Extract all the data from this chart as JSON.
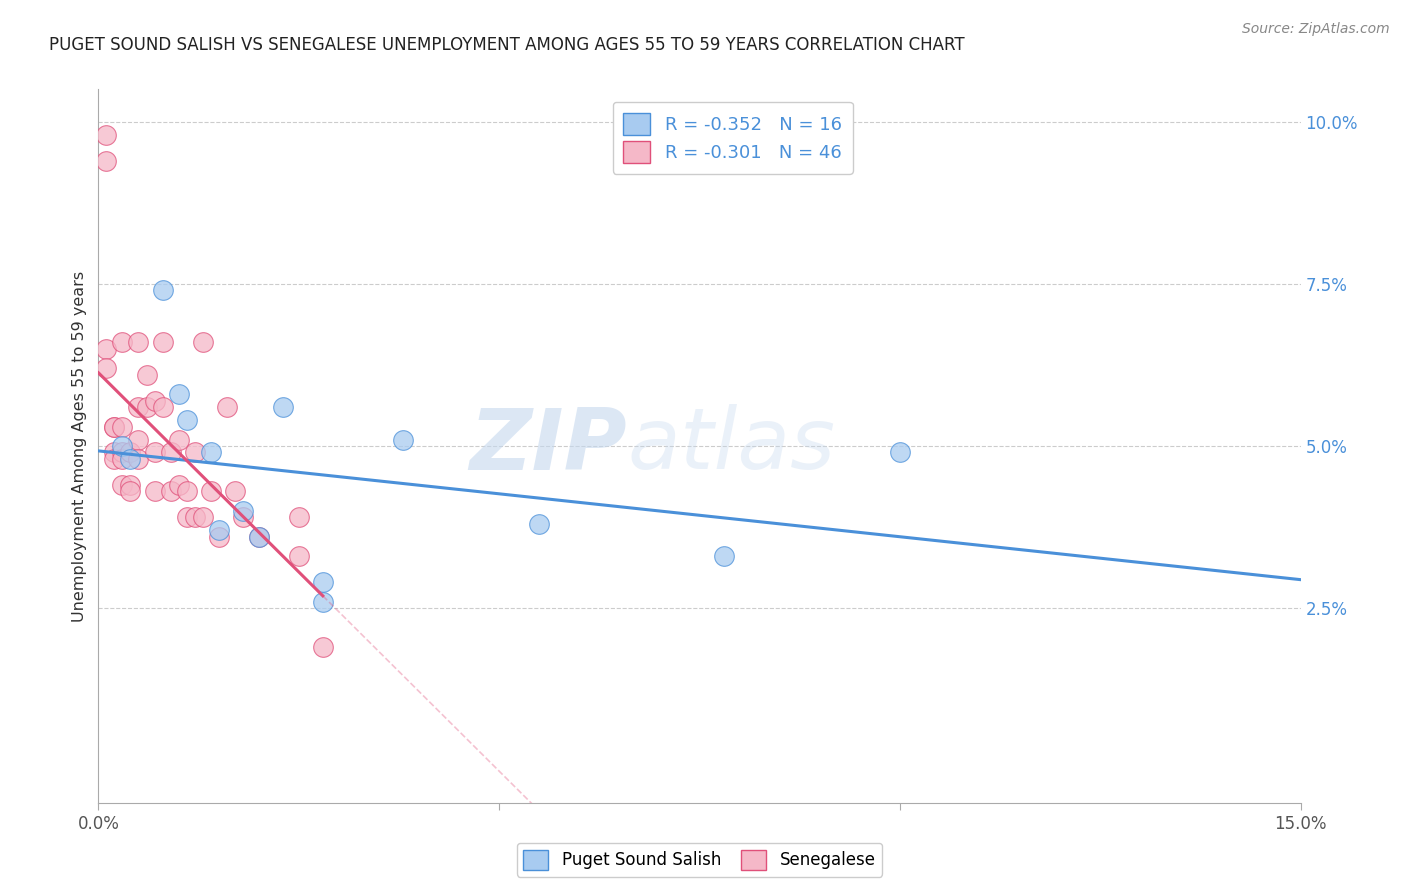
{
  "title": "PUGET SOUND SALISH VS SENEGALESE UNEMPLOYMENT AMONG AGES 55 TO 59 YEARS CORRELATION CHART",
  "source": "Source: ZipAtlas.com",
  "ylabel": "Unemployment Among Ages 55 to 59 years",
  "xlim": [
    0.0,
    0.15
  ],
  "ylim": [
    -0.005,
    0.105
  ],
  "yticks_right": [
    0.025,
    0.05,
    0.075,
    0.1
  ],
  "yticklabels_right": [
    "2.5%",
    "5.0%",
    "7.5%",
    "10.0%"
  ],
  "blue_color": "#A8CBF0",
  "pink_color": "#F5B8C8",
  "blue_line_color": "#4A90D9",
  "pink_line_color": "#E0507A",
  "blue_r": "-0.352",
  "blue_n": "16",
  "pink_r": "-0.301",
  "pink_n": "46",
  "legend_label_blue": "Puget Sound Salish",
  "legend_label_pink": "Senegalese",
  "watermark_zip": "ZIP",
  "watermark_atlas": "atlas",
  "blue_points_x": [
    0.003,
    0.004,
    0.008,
    0.01,
    0.011,
    0.014,
    0.015,
    0.018,
    0.02,
    0.023,
    0.028,
    0.028,
    0.038,
    0.055,
    0.078,
    0.1
  ],
  "blue_points_y": [
    0.05,
    0.048,
    0.074,
    0.058,
    0.054,
    0.049,
    0.037,
    0.04,
    0.036,
    0.056,
    0.029,
    0.026,
    0.051,
    0.038,
    0.033,
    0.049
  ],
  "pink_points_x": [
    0.001,
    0.001,
    0.001,
    0.001,
    0.002,
    0.002,
    0.002,
    0.002,
    0.003,
    0.003,
    0.003,
    0.003,
    0.003,
    0.004,
    0.004,
    0.004,
    0.005,
    0.005,
    0.005,
    0.005,
    0.006,
    0.006,
    0.007,
    0.007,
    0.007,
    0.008,
    0.008,
    0.009,
    0.009,
    0.01,
    0.01,
    0.011,
    0.011,
    0.012,
    0.012,
    0.013,
    0.013,
    0.014,
    0.015,
    0.016,
    0.017,
    0.018,
    0.02,
    0.025,
    0.025,
    0.028
  ],
  "pink_points_y": [
    0.098,
    0.094,
    0.065,
    0.062,
    0.053,
    0.049,
    0.053,
    0.048,
    0.066,
    0.053,
    0.049,
    0.048,
    0.044,
    0.049,
    0.044,
    0.043,
    0.066,
    0.056,
    0.051,
    0.048,
    0.061,
    0.056,
    0.049,
    0.043,
    0.057,
    0.066,
    0.056,
    0.049,
    0.043,
    0.051,
    0.044,
    0.043,
    0.039,
    0.049,
    0.039,
    0.039,
    0.066,
    0.043,
    0.036,
    0.056,
    0.043,
    0.039,
    0.036,
    0.033,
    0.039,
    0.019
  ],
  "grid_color": "#CCCCCC",
  "background_color": "#FFFFFF"
}
